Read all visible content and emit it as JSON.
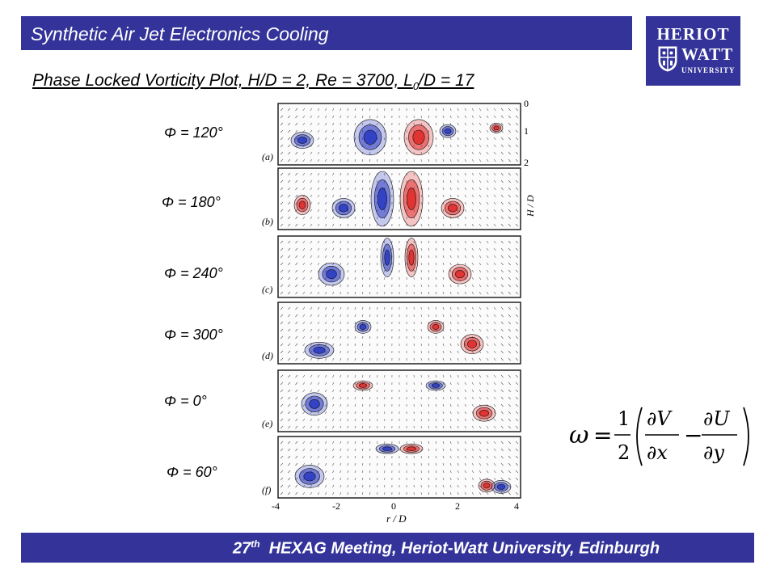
{
  "header": {
    "title": "Synthetic Air Jet Electronics Cooling",
    "logo": {
      "line1": "HERIOT",
      "line2": "WATT",
      "line3": "UNIVERSITY"
    }
  },
  "slide": {
    "subtitle_before": "Phase Locked Vorticity Plot, H/D = 2, Re = 3700, L",
    "subtitle_sub": "0",
    "subtitle_after": "/D = 17",
    "phases": [
      "Φ = 120°",
      "Φ = 180°",
      "Φ = 240°",
      "Φ = 300°",
      "Φ = 0°",
      "Φ = 60°"
    ],
    "panel_labels": [
      "(a)",
      "(b)",
      "(c)",
      "(d)",
      "(e)",
      "(f)"
    ],
    "x_ticks": [
      "-4",
      "-2",
      "0",
      "2",
      "4"
    ],
    "x_label": "r / D",
    "y_ticks": [
      "0",
      "1",
      "2"
    ],
    "y_label": "H / D",
    "formula": "ω = 1/2 ( ∂V/∂x − ∂U/∂y )"
  },
  "footer": {
    "number": "27",
    "suffix": "th",
    "text": "HEXAG Meeting, Heriot-Watt University, Edinburgh"
  },
  "colors": {
    "brand_blue": "#33339a",
    "vorticity_positive": "#e02020",
    "vorticity_negative": "#2030c0"
  }
}
